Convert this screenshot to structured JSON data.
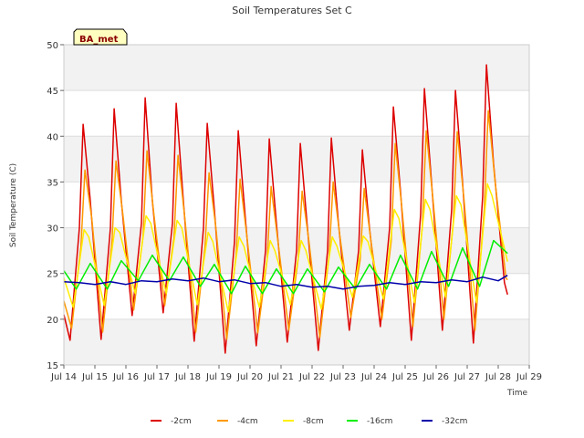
{
  "chart_data": {
    "type": "line",
    "title": "Soil Temperatures Set C",
    "xlabel": "Time",
    "ylabel": "Soil Temperature (C)",
    "badge": "BA_met",
    "xlim": [
      14,
      29
    ],
    "ylim": [
      15,
      50
    ],
    "x_ticks": [
      14,
      15,
      16,
      17,
      18,
      19,
      20,
      21,
      22,
      23,
      24,
      25,
      26,
      27,
      28,
      29
    ],
    "x_tick_labels": [
      "Jul 14",
      "Jul 15",
      "Jul 16",
      "Jul 17",
      "Jul 18",
      "Jul 19",
      "Jul 20",
      "Jul 21",
      "Jul 22",
      "Jul 23",
      "Jul 24",
      "Jul 25",
      "Jul 26",
      "Jul 27",
      "Jul 28",
      "Jul 29"
    ],
    "y_ticks": [
      15,
      20,
      25,
      30,
      35,
      40,
      45,
      50
    ],
    "y_tick_labels": [
      "15",
      "20",
      "25",
      "30",
      "35",
      "40",
      "45",
      "50"
    ],
    "grid": true,
    "band_colors": [
      "#f2f2f2",
      "#ffffff"
    ],
    "legend_position": "bottom",
    "series": [
      {
        "name": "-2cm",
        "color": "#dd0000",
        "x": [
          14.0,
          14.2,
          14.5,
          14.62,
          14.85,
          15.2,
          15.5,
          15.62,
          15.85,
          16.2,
          16.5,
          16.62,
          16.85,
          17.2,
          17.5,
          17.62,
          17.85,
          18.2,
          18.5,
          18.62,
          18.85,
          19.2,
          19.5,
          19.62,
          19.85,
          20.2,
          20.5,
          20.62,
          20.85,
          21.2,
          21.5,
          21.62,
          21.85,
          22.2,
          22.5,
          22.62,
          22.85,
          23.2,
          23.5,
          23.62,
          23.85,
          24.2,
          24.5,
          24.62,
          24.85,
          25.2,
          25.5,
          25.62,
          25.85,
          26.2,
          26.5,
          26.62,
          26.85,
          27.2,
          27.5,
          27.62,
          27.85,
          28.2,
          28.3
        ],
        "y": [
          20.5,
          17.7,
          30.0,
          41.3,
          33.0,
          17.8,
          30.0,
          43.0,
          33.0,
          20.4,
          30.5,
          44.2,
          33.0,
          20.7,
          30.5,
          43.6,
          33.0,
          17.6,
          30.0,
          41.4,
          32.0,
          16.3,
          28.5,
          40.6,
          31.0,
          17.1,
          27.5,
          39.7,
          30.5,
          17.5,
          27.5,
          39.2,
          30.0,
          16.6,
          27.5,
          39.8,
          30.5,
          18.8,
          27.5,
          38.5,
          30.0,
          19.2,
          30.0,
          43.2,
          34.0,
          17.7,
          31.5,
          45.2,
          35.0,
          18.8,
          32.0,
          45.0,
          35.0,
          17.4,
          33.5,
          47.8,
          37.0,
          24.0,
          22.7
        ]
      },
      {
        "name": "-4cm",
        "color": "#ff9900",
        "x": [
          14.0,
          14.25,
          14.55,
          14.68,
          14.9,
          15.25,
          15.55,
          15.68,
          15.9,
          16.25,
          16.55,
          16.68,
          16.9,
          17.25,
          17.55,
          17.68,
          17.9,
          18.25,
          18.55,
          18.68,
          18.9,
          19.25,
          19.55,
          19.68,
          19.9,
          20.25,
          20.55,
          20.68,
          20.9,
          21.25,
          21.55,
          21.68,
          21.9,
          22.25,
          22.55,
          22.68,
          22.9,
          23.25,
          23.55,
          23.68,
          23.9,
          24.25,
          24.55,
          24.68,
          24.9,
          25.25,
          25.55,
          25.68,
          25.9,
          26.25,
          26.55,
          26.68,
          26.9,
          27.25,
          27.55,
          27.68,
          27.9,
          28.25,
          28.3
        ],
        "y": [
          22.0,
          19.0,
          28.0,
          36.3,
          31.0,
          18.6,
          28.5,
          37.3,
          31.5,
          21.0,
          29.0,
          38.4,
          31.5,
          21.5,
          29.0,
          37.9,
          31.0,
          18.6,
          28.0,
          36.0,
          30.0,
          17.8,
          27.0,
          35.3,
          29.0,
          18.5,
          26.5,
          34.5,
          28.5,
          18.8,
          26.5,
          34.0,
          28.5,
          18.0,
          27.0,
          35.0,
          29.0,
          20.2,
          26.5,
          34.3,
          28.5,
          20.0,
          28.5,
          39.2,
          32.0,
          19.2,
          30.0,
          40.6,
          33.0,
          20.0,
          30.5,
          40.5,
          33.0,
          18.8,
          32.0,
          42.8,
          35.0,
          24.5,
          24.3
        ]
      },
      {
        "name": "-8cm",
        "color": "#ffee00",
        "x": [
          14.0,
          14.3,
          14.65,
          14.8,
          15.3,
          15.65,
          15.8,
          16.3,
          16.65,
          16.8,
          17.3,
          17.65,
          17.8,
          18.3,
          18.65,
          18.8,
          19.3,
          19.65,
          19.8,
          20.3,
          20.65,
          20.8,
          21.3,
          21.65,
          21.8,
          22.3,
          22.65,
          22.8,
          23.3,
          23.65,
          23.8,
          24.3,
          24.65,
          24.8,
          25.3,
          25.65,
          25.8,
          26.3,
          26.65,
          26.8,
          27.3,
          27.65,
          27.8,
          28.3
        ],
        "y": [
          24.5,
          21.3,
          29.8,
          29.0,
          21.5,
          30.0,
          29.5,
          22.8,
          31.3,
          30.5,
          22.8,
          30.8,
          30.0,
          21.6,
          29.5,
          28.5,
          20.8,
          29.0,
          28.0,
          21.3,
          28.6,
          27.5,
          21.6,
          28.6,
          27.5,
          21.1,
          29.0,
          28.0,
          22.4,
          29.1,
          28.5,
          22.2,
          32.0,
          31.0,
          21.8,
          33.1,
          32.0,
          22.4,
          33.5,
          32.5,
          21.8,
          34.8,
          33.5,
          26.3
        ]
      },
      {
        "name": "-16cm",
        "color": "#00ee00",
        "x": [
          14.0,
          14.4,
          14.85,
          15.4,
          15.85,
          16.4,
          16.85,
          17.4,
          17.85,
          18.4,
          18.85,
          19.4,
          19.85,
          20.4,
          20.85,
          21.4,
          21.85,
          22.4,
          22.85,
          23.4,
          23.85,
          24.4,
          24.85,
          25.4,
          25.85,
          26.4,
          26.85,
          27.4,
          27.85,
          28.3
        ],
        "y": [
          25.3,
          23.3,
          26.1,
          23.3,
          26.4,
          24.2,
          27.0,
          24.2,
          26.8,
          23.6,
          26.0,
          22.8,
          25.8,
          22.8,
          25.5,
          22.8,
          25.5,
          23.0,
          25.7,
          23.3,
          26.0,
          23.3,
          27.0,
          23.3,
          27.4,
          23.6,
          27.8,
          23.6,
          28.6,
          27.2
        ]
      },
      {
        "name": "-32cm",
        "color": "#0000aa",
        "x": [
          14.0,
          14.5,
          15.0,
          15.5,
          16.0,
          16.5,
          17.0,
          17.5,
          18.0,
          18.5,
          19.0,
          19.5,
          20.0,
          20.5,
          21.0,
          21.5,
          22.0,
          22.5,
          23.0,
          23.5,
          24.0,
          24.5,
          25.0,
          25.5,
          26.0,
          26.5,
          27.0,
          27.5,
          28.0,
          28.3
        ],
        "y": [
          24.1,
          24.0,
          23.8,
          24.1,
          23.8,
          24.2,
          24.1,
          24.4,
          24.2,
          24.5,
          24.1,
          24.3,
          23.9,
          24.0,
          23.6,
          23.8,
          23.5,
          23.6,
          23.3,
          23.6,
          23.7,
          24.0,
          23.8,
          24.1,
          24.0,
          24.3,
          24.1,
          24.6,
          24.2,
          24.8
        ]
      }
    ]
  }
}
